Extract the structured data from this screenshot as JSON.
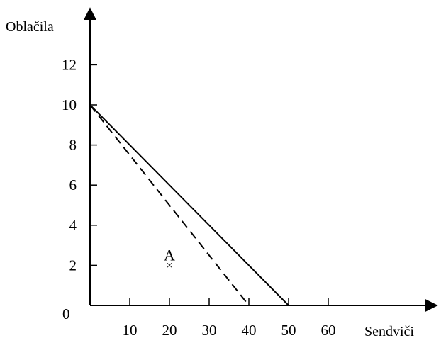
{
  "chart_data": {
    "type": "line",
    "title": "",
    "xlabel": "Sendviči",
    "ylabel": "Oblačila",
    "xlim": [
      0,
      65
    ],
    "ylim": [
      0,
      13.5
    ],
    "x_ticks": [
      10,
      20,
      30,
      40,
      50,
      60
    ],
    "x_tick_labels": [
      "10",
      "20",
      "30",
      "40",
      "50",
      "60"
    ],
    "y_ticks": [
      2,
      4,
      6,
      8,
      10,
      12
    ],
    "y_tick_labels": [
      "2",
      "4",
      "6",
      "8",
      "10",
      "12"
    ],
    "origin_label": "0",
    "grid": false,
    "legend": "none",
    "series": [
      {
        "style": "solid",
        "color": "#000000",
        "points": [
          [
            0,
            10
          ],
          [
            50,
            0
          ]
        ]
      },
      {
        "style": "dashed",
        "color": "#000000",
        "points": [
          [
            0,
            10
          ],
          [
            40,
            0
          ]
        ]
      }
    ],
    "annotations": [
      {
        "label": "A",
        "x": 20,
        "y": 2,
        "marker": "×"
      }
    ]
  }
}
